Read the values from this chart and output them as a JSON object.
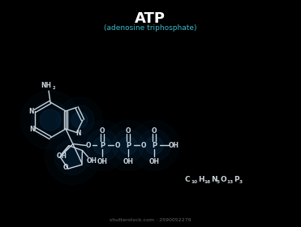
{
  "background_color": "#000000",
  "title": "ATP",
  "title_color": "#ffffff",
  "title_fontsize": 13,
  "subtitle": "(adenosine triphosphate)",
  "subtitle_color": "#3ab8c8",
  "subtitle_fontsize": 6.5,
  "bond_color": "#c8d4dc",
  "glow_color": "#0a4878",
  "watermark": "shutterstock.com · 2590052279",
  "watermark_color": "#666666",
  "watermark_fontsize": 4.5,
  "fig_w": 3.71,
  "fig_h": 2.8,
  "dpi": 100
}
